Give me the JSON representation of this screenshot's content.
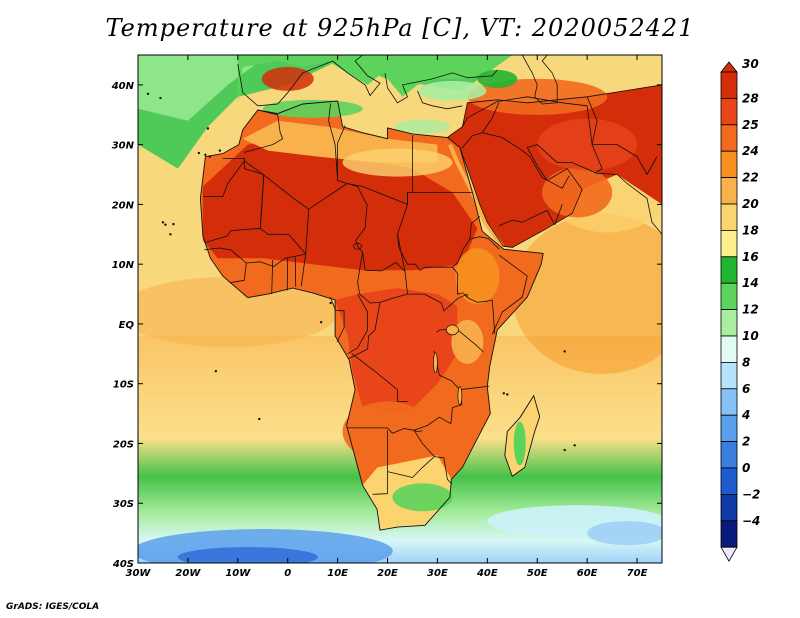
{
  "title": "Temperature at 925hPa [C], VT: 2020052421",
  "footer": "GrADS: IGES/COLA",
  "map": {
    "projection": "latlon",
    "lon_range": [
      -30,
      75
    ],
    "lat_range": [
      -40,
      45
    ],
    "lat_tick_labels": [
      "40N",
      "30N",
      "20N",
      "10N",
      "EQ",
      "10S",
      "20S",
      "30S",
      "40S"
    ],
    "lon_tick_labels": [
      "30W",
      "20W",
      "10W",
      "0",
      "10E",
      "20E",
      "30E",
      "40E",
      "50E",
      "60E",
      "70E"
    ],
    "ocean_color": "#f7d87c",
    "land_color": "#e0401a"
  },
  "colorbar": {
    "labels": [
      "30",
      "28",
      "25",
      "24",
      "22",
      "20",
      "18",
      "16",
      "14",
      "12",
      "10",
      "8",
      "6",
      "4",
      "2",
      "0",
      "−2",
      "−4"
    ],
    "colors": [
      "#d32d0a",
      "#e8451a",
      "#f26a1e",
      "#f7901f",
      "#f9b14c",
      "#fbd36f",
      "#fff08e",
      "#22b532",
      "#5cd45c",
      "#a8eda0",
      "#e2faf4",
      "#b6e3fb",
      "#86c3f5",
      "#5aa0ec",
      "#3a7ee0",
      "#1e5bd0",
      "#0f3aa8",
      "#0a1a7a"
    ]
  }
}
